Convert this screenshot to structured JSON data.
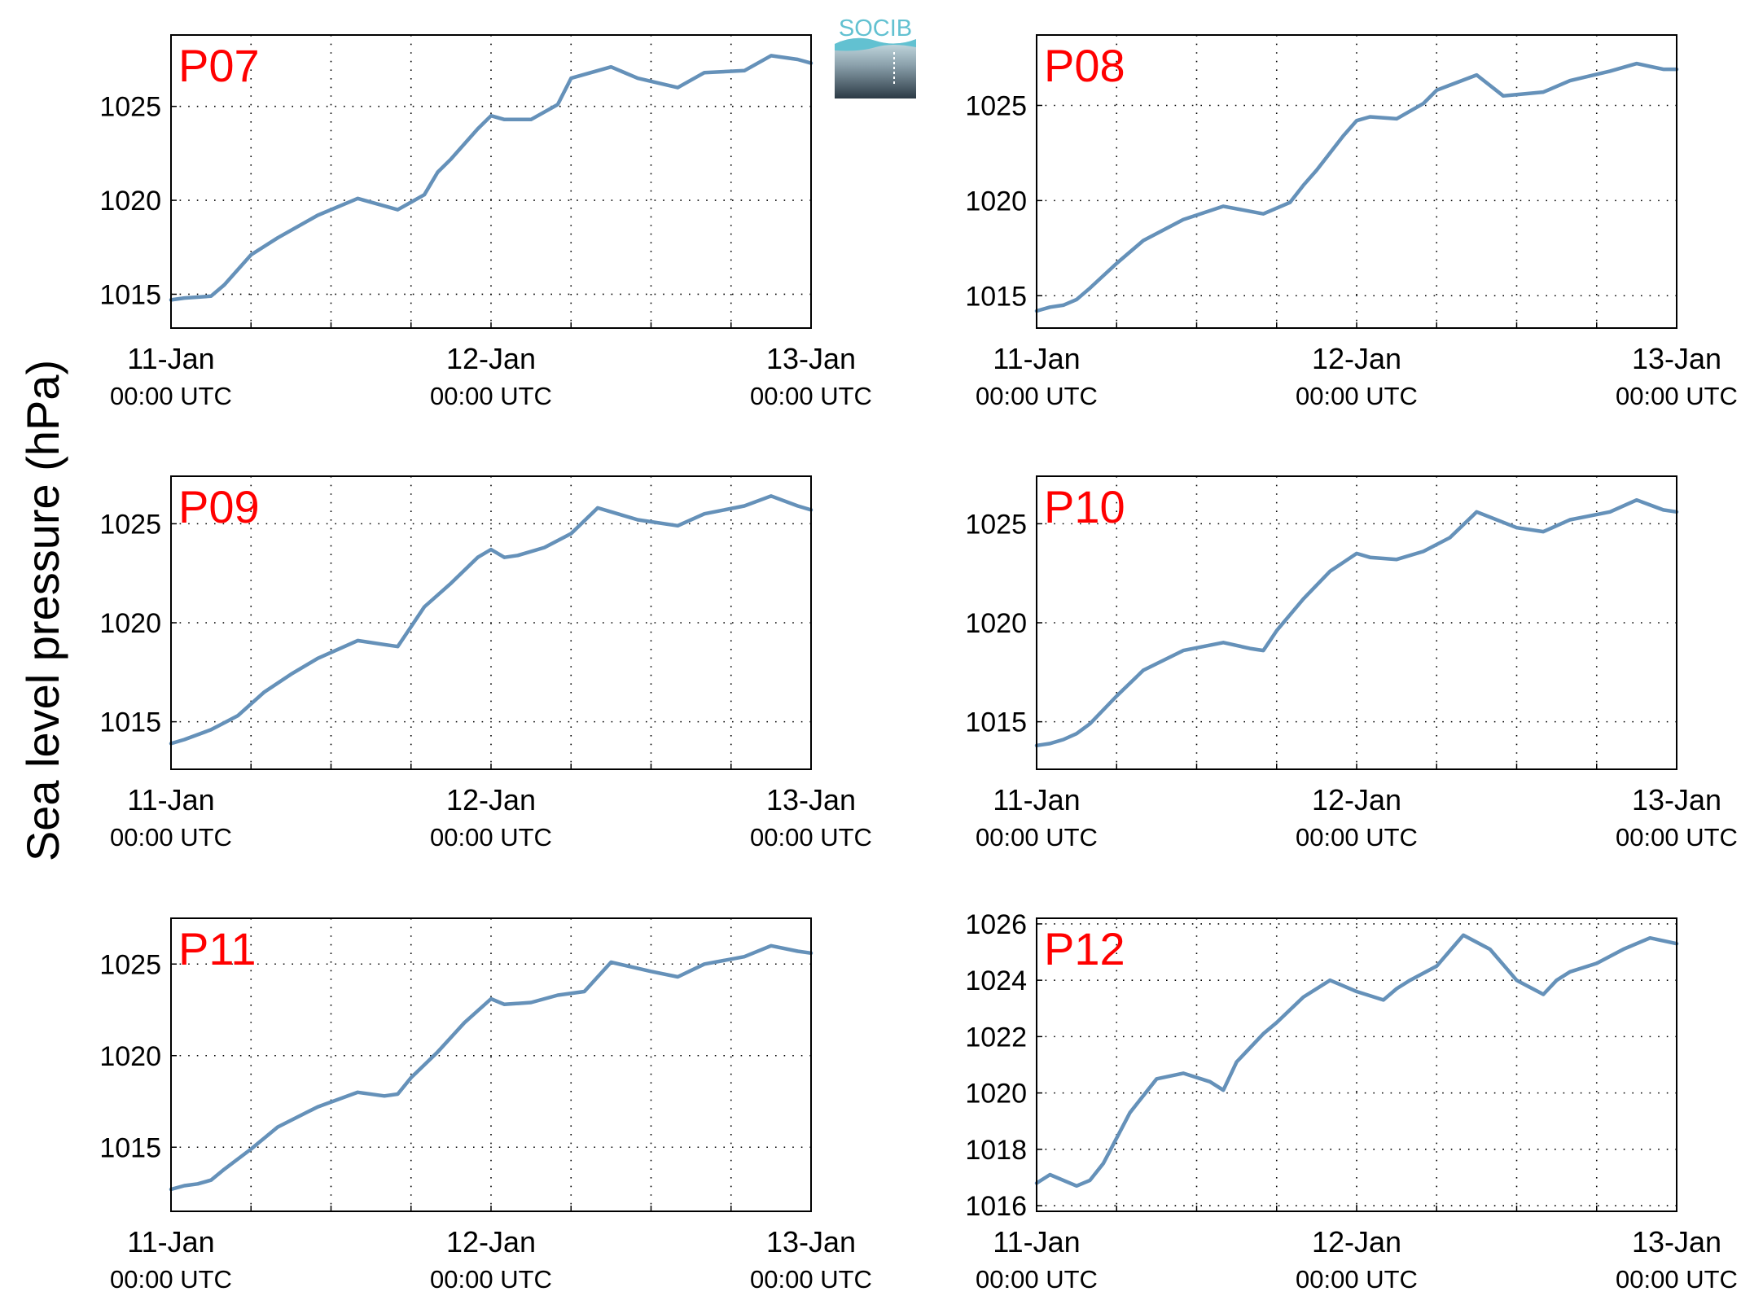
{
  "figure": {
    "ylabel": "Sea level pressure (hPa)",
    "logo_text": "SOCIB"
  },
  "colors": {
    "line": "#6591b9",
    "station_label": "#ff0000",
    "grid": "#000000",
    "logo_top": "#62c1d1",
    "logo_bottom": "#2c3a45"
  },
  "chart_data": [
    {
      "type": "line",
      "title": "P07",
      "x_ticks": [
        {
          "day": "11-Jan",
          "time": "00:00 UTC"
        },
        {
          "day": "12-Jan",
          "time": "00:00 UTC"
        },
        {
          "day": "13-Jan",
          "time": "00:00 UTC"
        }
      ],
      "xlim": [
        "2015-01-11 00:00",
        "2015-01-13 00:00"
      ],
      "ylim": [
        1013.2,
        1028.8
      ],
      "yticks": [
        1015,
        1020,
        1025
      ],
      "grid": true,
      "series": [
        {
          "x": [
            "2015-01-11 00:00",
            "2015-01-11 01:00",
            "2015-01-11 03:00",
            "2015-01-11 04:00",
            "2015-01-11 06:00",
            "2015-01-11 08:00",
            "2015-01-11 11:00",
            "2015-01-11 14:00",
            "2015-01-11 17:00",
            "2015-01-11 19:00",
            "2015-01-11 20:00",
            "2015-01-11 21:00",
            "2015-01-11 22:00",
            "2015-01-11 23:00",
            "2015-01-12 00:00",
            "2015-01-12 01:00",
            "2015-01-12 03:00",
            "2015-01-12 05:00",
            "2015-01-12 06:00",
            "2015-01-12 09:00",
            "2015-01-12 11:00",
            "2015-01-12 14:00",
            "2015-01-12 16:00",
            "2015-01-12 19:00",
            "2015-01-12 21:00",
            "2015-01-12 23:00",
            "2015-01-13 00:00"
          ],
          "y": [
            1014.7,
            1014.8,
            1014.9,
            1015.5,
            1017.1,
            1018.0,
            1019.2,
            1020.1,
            1019.5,
            1020.3,
            1021.5,
            1022.2,
            1023.0,
            1023.8,
            1024.5,
            1024.3,
            1024.3,
            1025.1,
            1026.5,
            1027.1,
            1026.5,
            1026.0,
            1026.8,
            1026.9,
            1027.7,
            1027.5,
            1027.3
          ]
        }
      ]
    },
    {
      "type": "line",
      "title": "P08",
      "x_ticks": [
        {
          "day": "11-Jan",
          "time": "00:00 UTC"
        },
        {
          "day": "12-Jan",
          "time": "00:00 UTC"
        },
        {
          "day": "13-Jan",
          "time": "00:00 UTC"
        }
      ],
      "xlim": [
        "2015-01-11 00:00",
        "2015-01-13 00:00"
      ],
      "ylim": [
        1013.3,
        1028.7
      ],
      "yticks": [
        1015,
        1020,
        1025
      ],
      "grid": true,
      "series": [
        {
          "x": [
            "2015-01-11 00:00",
            "2015-01-11 01:00",
            "2015-01-11 02:00",
            "2015-01-11 03:00",
            "2015-01-11 04:00",
            "2015-01-11 06:00",
            "2015-01-11 08:00",
            "2015-01-11 11:00",
            "2015-01-11 14:00",
            "2015-01-11 17:00",
            "2015-01-11 19:00",
            "2015-01-11 20:00",
            "2015-01-11 21:00",
            "2015-01-11 22:00",
            "2015-01-11 23:00",
            "2015-01-12 00:00",
            "2015-01-12 01:00",
            "2015-01-12 03:00",
            "2015-01-12 05:00",
            "2015-01-12 06:00",
            "2015-01-12 09:00",
            "2015-01-12 11:00",
            "2015-01-12 14:00",
            "2015-01-12 16:00",
            "2015-01-12 19:00",
            "2015-01-12 21:00",
            "2015-01-12 23:00",
            "2015-01-13 00:00"
          ],
          "y": [
            1014.2,
            1014.4,
            1014.5,
            1014.8,
            1015.4,
            1016.7,
            1017.9,
            1019.0,
            1019.7,
            1019.3,
            1019.9,
            1020.8,
            1021.6,
            1022.5,
            1023.4,
            1024.2,
            1024.4,
            1024.3,
            1025.1,
            1025.8,
            1026.6,
            1025.5,
            1025.7,
            1026.3,
            1026.8,
            1027.2,
            1026.9,
            1026.9
          ]
        }
      ]
    },
    {
      "type": "line",
      "title": "P09",
      "x_ticks": [
        {
          "day": "11-Jan",
          "time": "00:00 UTC"
        },
        {
          "day": "12-Jan",
          "time": "00:00 UTC"
        },
        {
          "day": "13-Jan",
          "time": "00:00 UTC"
        }
      ],
      "xlim": [
        "2015-01-11 00:00",
        "2015-01-13 00:00"
      ],
      "ylim": [
        1012.6,
        1027.4
      ],
      "yticks": [
        1015,
        1020,
        1025
      ],
      "grid": true,
      "series": [
        {
          "x": [
            "2015-01-11 00:00",
            "2015-01-11 01:00",
            "2015-01-11 03:00",
            "2015-01-11 05:00",
            "2015-01-11 07:00",
            "2015-01-11 09:00",
            "2015-01-11 11:00",
            "2015-01-11 14:00",
            "2015-01-11 16:00",
            "2015-01-11 17:00",
            "2015-01-11 18:00",
            "2015-01-11 19:00",
            "2015-01-11 21:00",
            "2015-01-11 23:00",
            "2015-01-12 00:00",
            "2015-01-12 01:00",
            "2015-01-12 02:00",
            "2015-01-12 04:00",
            "2015-01-12 06:00",
            "2015-01-12 08:00",
            "2015-01-12 11:00",
            "2015-01-12 14:00",
            "2015-01-12 16:00",
            "2015-01-12 19:00",
            "2015-01-12 21:00",
            "2015-01-12 23:00",
            "2015-01-13 00:00"
          ],
          "y": [
            1013.9,
            1014.1,
            1014.6,
            1015.3,
            1016.5,
            1017.4,
            1018.2,
            1019.1,
            1018.9,
            1018.8,
            1019.8,
            1020.8,
            1022.0,
            1023.3,
            1023.7,
            1023.3,
            1023.4,
            1023.8,
            1024.5,
            1025.8,
            1025.2,
            1024.9,
            1025.5,
            1025.9,
            1026.4,
            1025.9,
            1025.7
          ]
        }
      ]
    },
    {
      "type": "line",
      "title": "P10",
      "x_ticks": [
        {
          "day": "11-Jan",
          "time": "00:00 UTC"
        },
        {
          "day": "12-Jan",
          "time": "00:00 UTC"
        },
        {
          "day": "13-Jan",
          "time": "00:00 UTC"
        }
      ],
      "xlim": [
        "2015-01-11 00:00",
        "2015-01-13 00:00"
      ],
      "ylim": [
        1012.6,
        1027.4
      ],
      "yticks": [
        1015,
        1020,
        1025
      ],
      "grid": true,
      "series": [
        {
          "x": [
            "2015-01-11 00:00",
            "2015-01-11 01:00",
            "2015-01-11 02:00",
            "2015-01-11 03:00",
            "2015-01-11 04:00",
            "2015-01-11 06:00",
            "2015-01-11 08:00",
            "2015-01-11 11:00",
            "2015-01-11 14:00",
            "2015-01-11 16:00",
            "2015-01-11 17:00",
            "2015-01-11 18:00",
            "2015-01-11 20:00",
            "2015-01-11 22:00",
            "2015-01-12 00:00",
            "2015-01-12 01:00",
            "2015-01-12 03:00",
            "2015-01-12 05:00",
            "2015-01-12 07:00",
            "2015-01-12 09:00",
            "2015-01-12 12:00",
            "2015-01-12 14:00",
            "2015-01-12 16:00",
            "2015-01-12 19:00",
            "2015-01-12 21:00",
            "2015-01-12 23:00",
            "2015-01-13 00:00"
          ],
          "y": [
            1013.8,
            1013.9,
            1014.1,
            1014.4,
            1014.9,
            1016.3,
            1017.6,
            1018.6,
            1019.0,
            1018.7,
            1018.6,
            1019.6,
            1021.2,
            1022.6,
            1023.5,
            1023.3,
            1023.2,
            1023.6,
            1024.3,
            1025.6,
            1024.8,
            1024.6,
            1025.2,
            1025.6,
            1026.2,
            1025.7,
            1025.6
          ]
        }
      ]
    },
    {
      "type": "line",
      "title": "P11",
      "x_ticks": [
        {
          "day": "11-Jan",
          "time": "00:00 UTC"
        },
        {
          "day": "12-Jan",
          "time": "00:00 UTC"
        },
        {
          "day": "13-Jan",
          "time": "00:00 UTC"
        }
      ],
      "xlim": [
        "2015-01-11 00:00",
        "2015-01-13 00:00"
      ],
      "ylim": [
        1011.5,
        1027.5
      ],
      "yticks": [
        1015,
        1020,
        1025
      ],
      "grid": true,
      "series": [
        {
          "x": [
            "2015-01-11 00:00",
            "2015-01-11 01:00",
            "2015-01-11 02:00",
            "2015-01-11 03:00",
            "2015-01-11 04:00",
            "2015-01-11 06:00",
            "2015-01-11 08:00",
            "2015-01-11 11:00",
            "2015-01-11 14:00",
            "2015-01-11 16:00",
            "2015-01-11 17:00",
            "2015-01-11 18:00",
            "2015-01-11 20:00",
            "2015-01-11 22:00",
            "2015-01-12 00:00",
            "2015-01-12 01:00",
            "2015-01-12 03:00",
            "2015-01-12 05:00",
            "2015-01-12 07:00",
            "2015-01-12 09:00",
            "2015-01-12 12:00",
            "2015-01-12 14:00",
            "2015-01-12 16:00",
            "2015-01-12 19:00",
            "2015-01-12 21:00",
            "2015-01-12 23:00",
            "2015-01-13 00:00"
          ],
          "y": [
            1012.7,
            1012.9,
            1013.0,
            1013.2,
            1013.8,
            1014.9,
            1016.1,
            1017.2,
            1018.0,
            1017.8,
            1017.9,
            1018.8,
            1020.2,
            1021.8,
            1023.1,
            1022.8,
            1022.9,
            1023.3,
            1023.5,
            1025.1,
            1024.6,
            1024.3,
            1025.0,
            1025.4,
            1026.0,
            1025.7,
            1025.6
          ]
        }
      ]
    },
    {
      "type": "line",
      "title": "P12",
      "x_ticks": [
        {
          "day": "11-Jan",
          "time": "00:00 UTC"
        },
        {
          "day": "12-Jan",
          "time": "00:00 UTC"
        },
        {
          "day": "13-Jan",
          "time": "00:00 UTC"
        }
      ],
      "xlim": [
        "2015-01-11 00:00",
        "2015-01-13 00:00"
      ],
      "ylim": [
        1015.8,
        1026.2
      ],
      "yticks": [
        1016,
        1018,
        1020,
        1022,
        1024,
        1026
      ],
      "grid": true,
      "series": [
        {
          "x": [
            "2015-01-11 00:00",
            "2015-01-11 01:00",
            "2015-01-11 02:00",
            "2015-01-11 03:00",
            "2015-01-11 04:00",
            "2015-01-11 05:00",
            "2015-01-11 06:00",
            "2015-01-11 07:00",
            "2015-01-11 09:00",
            "2015-01-11 11:00",
            "2015-01-11 13:00",
            "2015-01-11 14:00",
            "2015-01-11 15:00",
            "2015-01-11 17:00",
            "2015-01-11 18:00",
            "2015-01-11 20:00",
            "2015-01-11 22:00",
            "2015-01-12 00:00",
            "2015-01-12 02:00",
            "2015-01-12 03:00",
            "2015-01-12 04:00",
            "2015-01-12 06:00",
            "2015-01-12 08:00",
            "2015-01-12 10:00",
            "2015-01-12 12:00",
            "2015-01-12 14:00",
            "2015-01-12 15:00",
            "2015-01-12 16:00",
            "2015-01-12 18:00",
            "2015-01-12 20:00",
            "2015-01-12 22:00",
            "2015-01-13 00:00"
          ],
          "y": [
            1016.8,
            1017.1,
            1016.9,
            1016.7,
            1016.9,
            1017.5,
            1018.4,
            1019.3,
            1020.5,
            1020.7,
            1020.4,
            1020.1,
            1021.1,
            1022.1,
            1022.5,
            1023.4,
            1024.0,
            1023.6,
            1023.3,
            1023.7,
            1024.0,
            1024.5,
            1025.6,
            1025.1,
            1024.0,
            1023.5,
            1024.0,
            1024.3,
            1024.6,
            1025.1,
            1025.5,
            1025.3
          ]
        }
      ]
    }
  ]
}
